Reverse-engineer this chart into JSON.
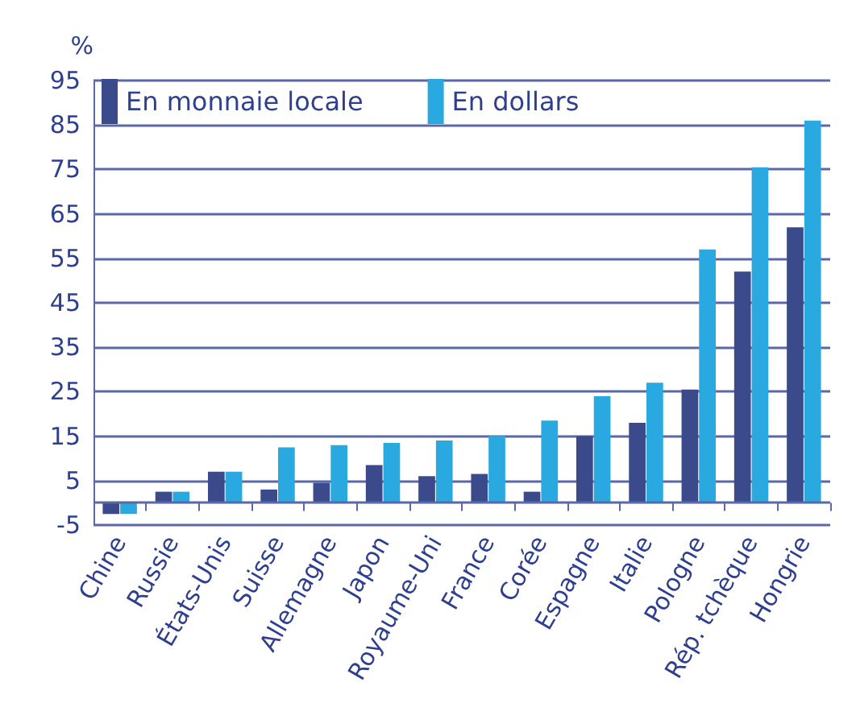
{
  "chart_data": {
    "type": "bar",
    "ylabel": "%",
    "categories": [
      "Chine",
      "Russie",
      "États-Unis",
      "Suisse",
      "Allemagne",
      "Japon",
      "Royaume-Uni",
      "France",
      "Corée",
      "Espagne",
      "Italie",
      "Pologne",
      "Rép. tchèque",
      "Hongrie"
    ],
    "series": [
      {
        "name": "En monnaie locale",
        "color": "#3b4a8a",
        "values": [
          -2.5,
          2.5,
          7,
          3,
          4.5,
          8.5,
          6,
          6.5,
          2.5,
          15,
          18,
          25.5,
          52,
          62
        ]
      },
      {
        "name": "En dollars",
        "color": "#29a9df",
        "values": [
          -2.5,
          2.5,
          7,
          12.5,
          13,
          13.5,
          14,
          15,
          18.5,
          24,
          27,
          57,
          75.5,
          86
        ]
      }
    ],
    "ylim": [
      -5,
      95
    ],
    "yticks": [
      -5,
      5,
      15,
      25,
      35,
      45,
      55,
      65,
      75,
      85,
      95
    ],
    "grid": "y",
    "legend": "top left",
    "ref_lines": [
      {
        "axis": "y",
        "value": 0
      }
    ]
  }
}
